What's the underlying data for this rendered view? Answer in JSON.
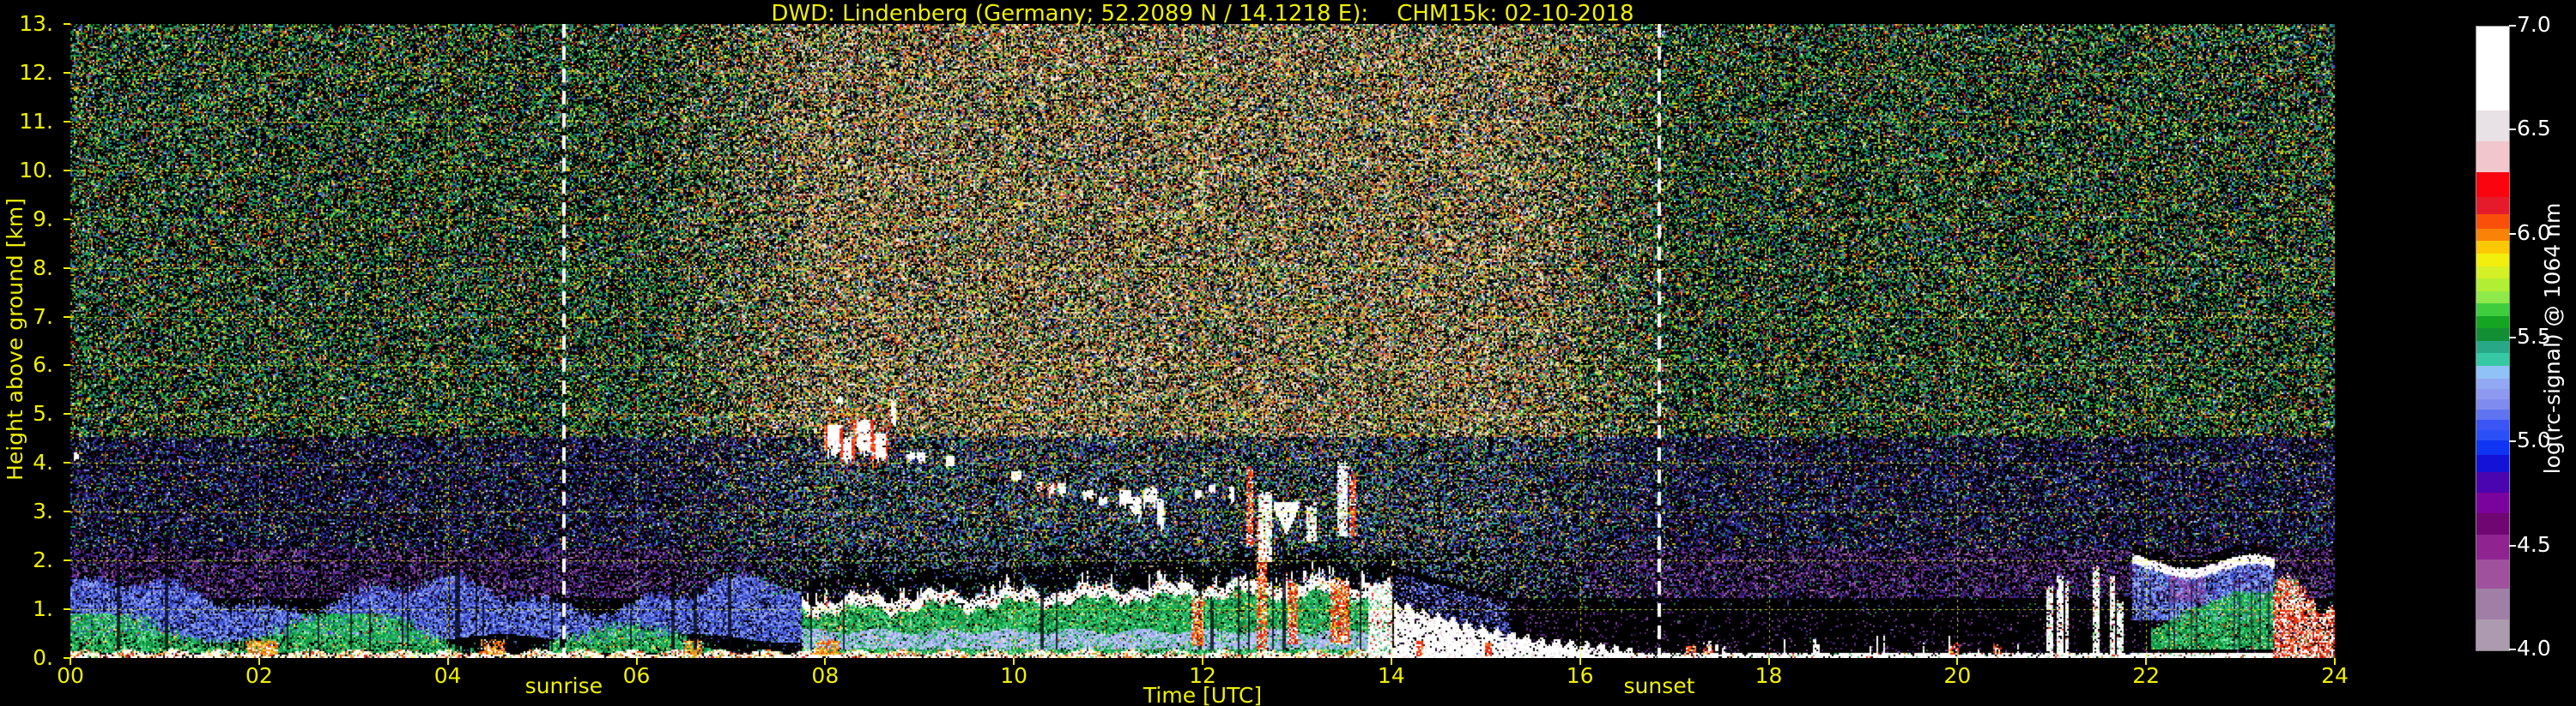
{
  "title": "DWD: Lindenberg (Germany; 52.2089 N / 14.1218 E):    CHM15k: 02-10-2018",
  "colors": {
    "background": "#000000",
    "axis_text": "#f0f000",
    "grid": "#f2f200",
    "sun_line": "#ffffff",
    "colorbar_text": "#ffffff"
  },
  "axes": {
    "x": {
      "label": "Time [UTC]",
      "range": [
        0,
        24
      ],
      "ticks": [
        "00",
        "02",
        "04",
        "06",
        "08",
        "10",
        "12",
        "14",
        "16",
        "18",
        "20",
        "22",
        "24"
      ]
    },
    "y": {
      "label": "Height above ground [km]",
      "range": [
        0,
        13
      ],
      "ticks": [
        "13.",
        "12.",
        "11.",
        "10.",
        "9.",
        "8.",
        "7.",
        "6.",
        "5.",
        "4.",
        "3.",
        "2.",
        "1.",
        "0."
      ]
    }
  },
  "annotations": {
    "sunrise": {
      "label": "sunrise",
      "time_utc": 5.23
    },
    "sunset": {
      "label": "sunset",
      "time_utc": 16.84
    }
  },
  "colorbar": {
    "label": "log(rc-signal) @ 1064 nm",
    "ticks": [
      "7.0",
      "6.5",
      "6.0",
      "5.5",
      "5.0",
      "4.5",
      "4.0"
    ],
    "range": [
      4.0,
      7.0
    ],
    "stops": [
      [
        4.0,
        "#ac9bae"
      ],
      [
        4.15,
        "#a07fa6"
      ],
      [
        4.3,
        "#a0519d"
      ],
      [
        4.44,
        "#8f2390"
      ],
      [
        4.56,
        "#6f0672"
      ],
      [
        4.66,
        "#7a039e"
      ],
      [
        4.76,
        "#4a04b0"
      ],
      [
        4.86,
        "#1512d8"
      ],
      [
        4.94,
        "#0f35f2"
      ],
      [
        5.01,
        "#2b50f7"
      ],
      [
        5.06,
        "#3b55f5"
      ],
      [
        5.11,
        "#5f74f0"
      ],
      [
        5.16,
        "#7f8bee"
      ],
      [
        5.21,
        "#8d9af0"
      ],
      [
        5.26,
        "#92a8f2"
      ],
      [
        5.31,
        "#90c2f8"
      ],
      [
        5.37,
        "#36c9a4"
      ],
      [
        5.43,
        "#28a887"
      ],
      [
        5.49,
        "#128f35"
      ],
      [
        5.55,
        "#14a522"
      ],
      [
        5.61,
        "#3fcd3e"
      ],
      [
        5.67,
        "#8fe94a"
      ],
      [
        5.73,
        "#b2ee33"
      ],
      [
        5.79,
        "#d4f026"
      ],
      [
        5.85,
        "#f2ee0e"
      ],
      [
        5.91,
        "#fbc805"
      ],
      [
        5.97,
        "#fa8206"
      ],
      [
        6.03,
        "#fa4f0a"
      ],
      [
        6.1,
        "#e51b2c"
      ],
      [
        6.18,
        "#fa0410"
      ],
      [
        6.3,
        "#f1c6cc"
      ],
      [
        6.45,
        "#e8e1e5"
      ],
      [
        6.6,
        "#ffffff"
      ]
    ]
  },
  "chart_data": {
    "type": "heatmap",
    "x_range_hours": [
      0,
      24
    ],
    "y_range_km": [
      0,
      13
    ],
    "value_range": [
      4.0,
      7.0
    ],
    "grid": {
      "x_step_hours": 2,
      "y_step_km": 1,
      "style": "yellow dashed, drawn over data"
    },
    "sunrise_utc": 5.23,
    "sunset_utc": 16.84,
    "bl_top_km": {
      "x": [
        0,
        2,
        4,
        6,
        8,
        9,
        10,
        11,
        12,
        13,
        13.8,
        14.2,
        15,
        16,
        17,
        19,
        21,
        21.5,
        22.5,
        23.3,
        23.9
      ],
      "y": [
        1.0,
        1.05,
        1.0,
        1.05,
        1.1,
        1.15,
        1.25,
        1.3,
        1.35,
        1.45,
        1.5,
        1.1,
        0.45,
        0.22,
        0.15,
        0.14,
        0.3,
        1.8,
        2.0,
        1.9,
        1.5
      ]
    },
    "cloud_track": {
      "t0": 8.9,
      "t1": 10.95,
      "h0": 4.3,
      "h1": 3.35
    },
    "cloud_blobs": [
      [
        8.08,
        4.78,
        0.1,
        0.55,
        1
      ],
      [
        8.22,
        4.52,
        0.07,
        0.5,
        1
      ],
      [
        8.4,
        4.88,
        0.1,
        0.65,
        1
      ],
      [
        8.58,
        4.6,
        0.08,
        0.5,
        1
      ],
      [
        8.72,
        5.3,
        0.02,
        0.45,
        0
      ],
      [
        8.15,
        5.35,
        0.03,
        0.12,
        0
      ],
      [
        11.18,
        3.45,
        0.06,
        0.3,
        0
      ],
      [
        11.3,
        3.3,
        0.05,
        0.45,
        0
      ],
      [
        11.44,
        3.5,
        0.07,
        0.35,
        0
      ],
      [
        11.55,
        3.25,
        0.04,
        0.5,
        0
      ],
      [
        11.95,
        3.45,
        0.03,
        0.2,
        0
      ],
      [
        12.1,
        3.55,
        0.03,
        0.15,
        0
      ],
      [
        12.3,
        3.5,
        0.02,
        0.25,
        0
      ],
      [
        0.06,
        4.2,
        0.025,
        0.12,
        0
      ]
    ],
    "v_feature": {
      "t": 12.88,
      "h_top": 3.2,
      "h_bot": 2.55,
      "half_width": 0.13
    },
    "fire_plumes": [
      [
        11.88,
        12.0,
        0.25,
        1.2
      ],
      [
        12.58,
        12.68,
        0.2,
        2.9
      ],
      [
        12.9,
        13.0,
        0.3,
        1.6
      ],
      [
        13.35,
        13.55,
        0.3,
        1.6
      ]
    ],
    "white_columns": [
      [
        12.6,
        12.72,
        2.0,
        3.4
      ],
      [
        13.1,
        13.2,
        2.4,
        3.15
      ],
      [
        13.42,
        13.52,
        2.5,
        4.0
      ],
      [
        13.75,
        14.0,
        0.0,
        1.5
      ]
    ],
    "red_streaks": [
      [
        12.47,
        12.53,
        2.3,
        3.9
      ],
      [
        13.55,
        13.62,
        2.5,
        3.8
      ]
    ],
    "orange_patches": [
      [
        1.85,
        2.2
      ],
      [
        4.35,
        4.6
      ],
      [
        6.5,
        6.68
      ],
      [
        7.9,
        8.15
      ]
    ],
    "red_flecks": [
      [
        17.12,
        17.22
      ],
      [
        17.3,
        17.4
      ],
      [
        19.9,
        20.0
      ],
      [
        20.38,
        20.46
      ]
    ],
    "collapse": {
      "pts": [
        [
          14.02,
          1.15
        ],
        [
          14.4,
          0.9
        ],
        [
          14.9,
          0.62
        ],
        [
          15.5,
          0.38
        ],
        [
          16.55,
          0.16
        ]
      ]
    },
    "evening_columns": {
      "t0": 20.95,
      "t1": 21.85,
      "top_min": 1.1,
      "top_max": 1.9
    },
    "evening_layer": {
      "t0": 21.85,
      "t1": 23.35,
      "cloud_top": 1.9,
      "blue_bottom": 0.8
    },
    "evening_precip": {
      "t0": 23.35,
      "t1": 24.0,
      "top": 1.3
    },
    "noise_zones": [
      {
        "hmin": 4.55,
        "hmax": 13.01,
        "night": {
          "density": 0.5,
          "palette": [
            [
              "#1d9b43",
              0.23
            ],
            [
              "#0f6e2e",
              0.15
            ],
            [
              "#1fa37c",
              0.1
            ],
            [
              "#7ad24a",
              0.06
            ],
            [
              "#d8d416",
              0.12
            ],
            [
              "#cc2b1c",
              0.08
            ],
            [
              "#d06a1e",
              0.06
            ],
            [
              "#2f55c8",
              0.09
            ],
            [
              "#3fb3c8",
              0.04
            ],
            [
              "#e8e8e8",
              0.03
            ],
            [
              "#6a3fa0",
              0.04
            ]
          ]
        },
        "day": {
          "density": 0.78,
          "palette": [
            [
              "#c9b492",
              0.15
            ],
            [
              "#efe9e1",
              0.12
            ],
            [
              "#8a6a4a",
              0.08
            ],
            [
              "#d23c28",
              0.1
            ],
            [
              "#dd7c2a",
              0.09
            ],
            [
              "#ddd52a",
              0.1
            ],
            [
              "#2f9e4a",
              0.12
            ],
            [
              "#176a30",
              0.06
            ],
            [
              "#3a5cc8",
              0.07
            ],
            [
              "#111111",
              0.11
            ]
          ]
        }
      },
      {
        "hmin": 2.25,
        "hmax": 4.55,
        "night": {
          "density": 0.45,
          "palette": [
            [
              "#272a96",
              0.2
            ],
            [
              "#3746c6",
              0.14
            ],
            [
              "#1a1d6e",
              0.1
            ],
            [
              "#4a1878",
              0.12
            ],
            [
              "#33104f",
              0.08
            ],
            [
              "#1d8f4f",
              0.08
            ],
            [
              "#1fa37c",
              0.05
            ],
            [
              "#c4c016",
              0.06
            ],
            [
              "#b8281c",
              0.04
            ],
            [
              "#6f87e8",
              0.07
            ],
            [
              "#dadae0",
              0.02
            ]
          ]
        },
        "day": {
          "density": 0.62,
          "palette": [
            [
              "#3a55cf",
              0.16
            ],
            [
              "#2f9e4a",
              0.14
            ],
            [
              "#28a88a",
              0.1
            ],
            [
              "#2b2f9e",
              0.1
            ],
            [
              "#ccc81e",
              0.08
            ],
            [
              "#7c98f0",
              0.07
            ],
            [
              "#c43b24",
              0.05
            ],
            [
              "#cf7a28",
              0.05
            ],
            [
              "#5a2a8a",
              0.05
            ],
            [
              "#e6e6e6",
              0.04
            ]
          ]
        }
      },
      {
        "hmin": 1.25,
        "hmax": 2.25,
        "night": {
          "density": 0.58,
          "palette": [
            [
              "#5c2384",
              0.26
            ],
            [
              "#85499c",
              0.16
            ],
            [
              "#33249e",
              0.1
            ],
            [
              "#3a1156",
              0.1
            ],
            [
              "#3746c6",
              0.06
            ],
            [
              "#a878c0",
              0.05
            ],
            [
              "#c06aa8",
              0.02
            ],
            [
              "#1d8f4f",
              0.03
            ]
          ]
        },
        "day": {
          "density": 0.55,
          "palette": [
            [
              "#3a55cf",
              0.14
            ],
            [
              "#2f9e4a",
              0.12
            ],
            [
              "#28a88a",
              0.08
            ],
            [
              "#9a85a8",
              0.12
            ],
            [
              "#5c2384",
              0.08
            ],
            [
              "#7c98f0",
              0.06
            ],
            [
              "#ccc81e",
              0.05
            ]
          ]
        }
      },
      {
        "hmin": 0.0,
        "hmax": 1.25,
        "night": {
          "density": 0.25,
          "palette": [
            [
              "#2a1a4a",
              0.12
            ],
            [
              "#1d8f4f",
              0.05
            ],
            [
              "#3746c6",
              0.05
            ],
            [
              "#5c2384",
              0.03
            ]
          ]
        },
        "day": {
          "density": 0.3,
          "palette": [
            [
              "#3a55cf",
              0.1
            ],
            [
              "#2f9e4a",
              0.1
            ],
            [
              "#2a1a4a",
              0.06
            ],
            [
              "#5c2384",
              0.04
            ]
          ]
        }
      }
    ],
    "palettes": {
      "greens": [
        [
          "#16a64e",
          0.3
        ],
        [
          "#2cc06a",
          0.22
        ],
        [
          "#55e08c",
          0.14
        ],
        [
          "#0b7f35",
          0.22
        ],
        [
          "#a8f0c0",
          0.05
        ],
        [
          "#ffe040",
          0.03
        ],
        [
          "#e85020",
          0.02
        ]
      ],
      "blues_night": [
        [
          "#3240c0",
          0.22
        ],
        [
          "#4a62e2",
          0.24
        ],
        [
          "#6f87e8",
          0.2
        ],
        [
          "#8ca4f2",
          0.12
        ],
        [
          "#1a1d6e",
          0.1
        ],
        [
          "#a8bcf8",
          0.06
        ]
      ],
      "lavender": [
        [
          "#aab6f2",
          0.45
        ],
        [
          "#c2ccfa",
          0.25
        ],
        [
          "#8c9ae8",
          0.2
        ],
        [
          "#e0e6ff",
          0.05
        ]
      ],
      "white_cloud": [
        [
          "#ffffff",
          0.78
        ],
        [
          "#e8e8e8",
          0.08
        ],
        [
          "#ffe0a0",
          0.04
        ],
        [
          "#e83020",
          0.04
        ],
        [
          "#101010",
          0.03
        ]
      ],
      "surface_day": [
        [
          "#ffffff",
          0.58
        ],
        [
          "#ffd890",
          0.08
        ],
        [
          "#f09020",
          0.09
        ],
        [
          "#e83020",
          0.08
        ],
        [
          "#58c878",
          0.06
        ],
        [
          "#ffff60",
          0.05
        ],
        [
          "#222222",
          0.03
        ]
      ],
      "surface_evening": [
        [
          "#ffffff",
          0.8
        ],
        [
          "#e8e8e8",
          0.07
        ],
        [
          "#e83020",
          0.03
        ],
        [
          "#58c878",
          0.04
        ],
        [
          "#f09020",
          0.02
        ]
      ],
      "fire": [
        [
          "#e82a10",
          0.33
        ],
        [
          "#ff7730",
          0.18
        ],
        [
          "#ffd020",
          0.14
        ],
        [
          "#ffffff",
          0.2
        ],
        [
          "#7a1008",
          0.08
        ]
      ],
      "white_col": [
        [
          "#ffffff",
          0.72
        ],
        [
          "#d8d8d8",
          0.1
        ],
        [
          "#9ae89a",
          0.08
        ],
        [
          "#e83020",
          0.06
        ]
      ],
      "red_thin": [
        [
          "#e82a10",
          0.5
        ],
        [
          "#ffffff",
          0.28
        ],
        [
          "#ff9040",
          0.18
        ]
      ],
      "orange_patch": [
        [
          "#f09020",
          0.38
        ],
        [
          "#e84810",
          0.24
        ],
        [
          "#ffd020",
          0.2
        ],
        [
          "#ffffff",
          0.12
        ]
      ],
      "evening_blue": [
        [
          "#4a66e2",
          0.22
        ],
        [
          "#7c98f0",
          0.28
        ],
        [
          "#a0b8f8",
          0.16
        ],
        [
          "#2a3ab0",
          0.12
        ],
        [
          "#6a3a9a",
          0.08
        ],
        [
          "#14142e",
          0.08
        ]
      ],
      "purple_patch": [
        [
          "#8f4aa8",
          0.5
        ],
        [
          "#6a3a9a",
          0.28
        ],
        [
          "#b070c0",
          0.18
        ]
      ],
      "red_precip": [
        [
          "#e82a10",
          0.32
        ],
        [
          "#ff7730",
          0.12
        ],
        [
          "#ffffff",
          0.34
        ],
        [
          "#f0c0c0",
          0.07
        ],
        [
          "#58c878",
          0.05
        ],
        [
          "#7a1008",
          0.07
        ]
      ],
      "black": [
        [
          "#000000",
          1.0
        ]
      ],
      "purple_speck": [
        [
          "#5c2384",
          0.7
        ],
        [
          "#85499c",
          0.3
        ]
      ],
      "blob_white": [
        [
          "#ffffff",
          0.85
        ],
        [
          "#ecdcdc",
          0.1
        ]
      ],
      "blob_red": [
        [
          "#e82a10",
          0.6
        ],
        [
          "#ff7730",
          0.25
        ],
        [
          "#ffffff",
          0.1
        ]
      ],
      "red_hatch": [
        [
          "#e82a10",
          0.16
        ],
        [
          "#ff7730",
          0.05
        ]
      ]
    }
  }
}
